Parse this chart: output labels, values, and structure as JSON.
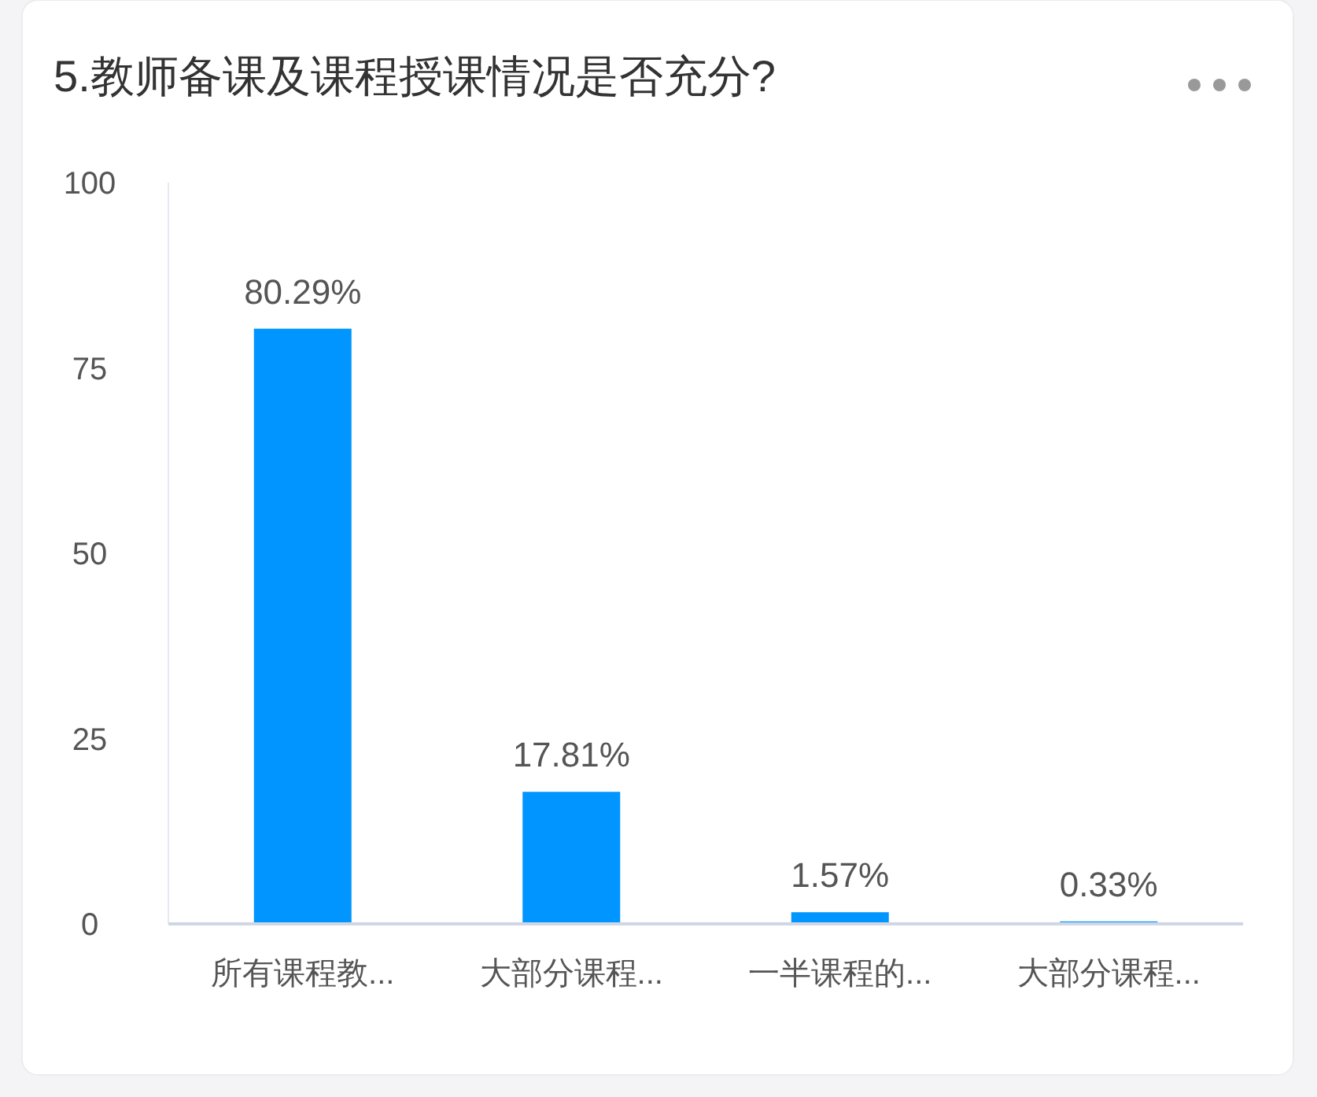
{
  "chart_data": {
    "type": "bar",
    "title": "5.教师备课及课程授课情况是否充分?",
    "categories": [
      "所有课程教...",
      "大部分课程...",
      "一半课程的...",
      "大部分课程..."
    ],
    "values": [
      80.29,
      17.81,
      1.57,
      0.33
    ],
    "value_labels": [
      "80.29%",
      "17.81%",
      "1.57%",
      "0.33%"
    ],
    "color": "#0095ff",
    "ylim": [
      0,
      100
    ],
    "yticks": [
      0,
      25,
      50,
      75,
      100
    ],
    "grid": false
  }
}
